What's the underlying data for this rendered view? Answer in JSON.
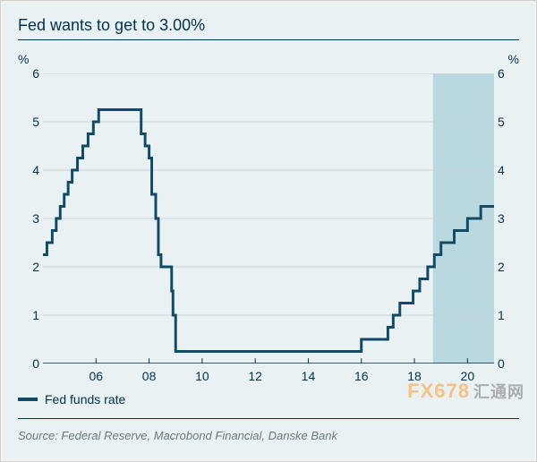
{
  "chart": {
    "type": "step-line",
    "title": "Fed wants to get to 3.00%",
    "y_axis": {
      "unit_left": "%",
      "unit_right": "%",
      "min": 0,
      "max": 6,
      "ticks": [
        0,
        1,
        2,
        3,
        4,
        5,
        6
      ]
    },
    "x_axis": {
      "min": 2004.0,
      "max": 2021.0,
      "tick_labels": [
        "06",
        "08",
        "10",
        "12",
        "14",
        "16",
        "18",
        "20"
      ],
      "tick_positions": [
        2006,
        2008,
        2010,
        2012,
        2014,
        2016,
        2018,
        2020
      ]
    },
    "forecast_band": {
      "x_start": 2018.7,
      "x_end": 2021.0,
      "fill": "#bad9de"
    },
    "series": {
      "name": "Fed funds rate",
      "color": "#0f4a66",
      "line_width": 3,
      "points": [
        [
          2004.0,
          2.25
        ],
        [
          2004.15,
          2.5
        ],
        [
          2004.35,
          2.75
        ],
        [
          2004.5,
          3.0
        ],
        [
          2004.65,
          3.25
        ],
        [
          2004.8,
          3.5
        ],
        [
          2004.95,
          3.75
        ],
        [
          2005.1,
          4.0
        ],
        [
          2005.3,
          4.25
        ],
        [
          2005.5,
          4.5
        ],
        [
          2005.7,
          4.75
        ],
        [
          2005.9,
          5.0
        ],
        [
          2006.1,
          5.25
        ],
        [
          2007.6,
          5.25
        ],
        [
          2007.7,
          4.75
        ],
        [
          2007.85,
          4.5
        ],
        [
          2008.0,
          4.25
        ],
        [
          2008.1,
          3.5
        ],
        [
          2008.25,
          3.0
        ],
        [
          2008.35,
          2.25
        ],
        [
          2008.45,
          2.0
        ],
        [
          2008.8,
          2.0
        ],
        [
          2008.85,
          1.5
        ],
        [
          2008.9,
          1.0
        ],
        [
          2009.0,
          0.25
        ],
        [
          2015.9,
          0.25
        ],
        [
          2016.0,
          0.5
        ],
        [
          2016.9,
          0.5
        ],
        [
          2017.0,
          0.75
        ],
        [
          2017.2,
          1.0
        ],
        [
          2017.45,
          1.25
        ],
        [
          2017.95,
          1.5
        ],
        [
          2018.2,
          1.75
        ],
        [
          2018.5,
          2.0
        ],
        [
          2018.75,
          2.25
        ],
        [
          2019.0,
          2.5
        ],
        [
          2019.5,
          2.75
        ],
        [
          2020.0,
          3.0
        ],
        [
          2020.5,
          3.25
        ],
        [
          2021.0,
          3.25
        ]
      ]
    },
    "legend": {
      "label": "Fed funds rate"
    },
    "source": "Source: Federal Reserve, Macrobond Financial, Danske Bank",
    "watermark": "FX678",
    "watermark_cn": "汇通网",
    "colors": {
      "panel_bg": "#eaf1f3",
      "text": "#003349",
      "grid": "#c8d4d8",
      "axis": "#003349",
      "forecast_fill": "#bad9de",
      "line": "#0f4a66",
      "source_text": "#6a7a80"
    },
    "fonts": {
      "title_size": 18,
      "tick_size": 14,
      "legend_size": 14,
      "source_size": 13
    }
  }
}
